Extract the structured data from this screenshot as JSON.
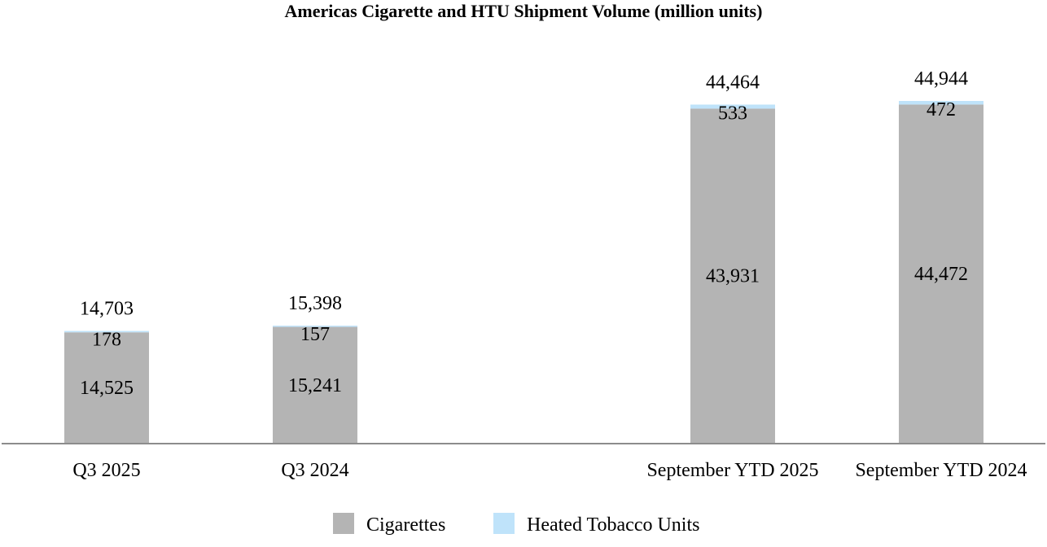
{
  "chart_data": {
    "type": "bar",
    "stacked": true,
    "title": "Americas Cigarette and HTU Shipment Volume (million units)",
    "categories": [
      "Q3 2025",
      "Q3 2024",
      "September YTD 2025",
      "September YTD 2024"
    ],
    "series": [
      {
        "name": "Cigarettes",
        "values": [
          14525,
          15241,
          43931,
          44472
        ],
        "color": "#b4b4b4"
      },
      {
        "name": "Heated Tobacco Units",
        "values": [
          178,
          157,
          533,
          472
        ],
        "color": "#bfe3fa"
      }
    ],
    "totals": [
      14703,
      15398,
      44464,
      44944
    ],
    "series_labels": {
      "cigarettes": [
        "14,525",
        "15,241",
        "43,931",
        "44,472"
      ],
      "htu": [
        "178",
        "157",
        "533",
        "472"
      ]
    },
    "total_labels": [
      "14,703",
      "15,398",
      "44,464",
      "44,944"
    ],
    "legend": "bottom",
    "grid": false,
    "ylim": [
      0,
      49000
    ]
  }
}
